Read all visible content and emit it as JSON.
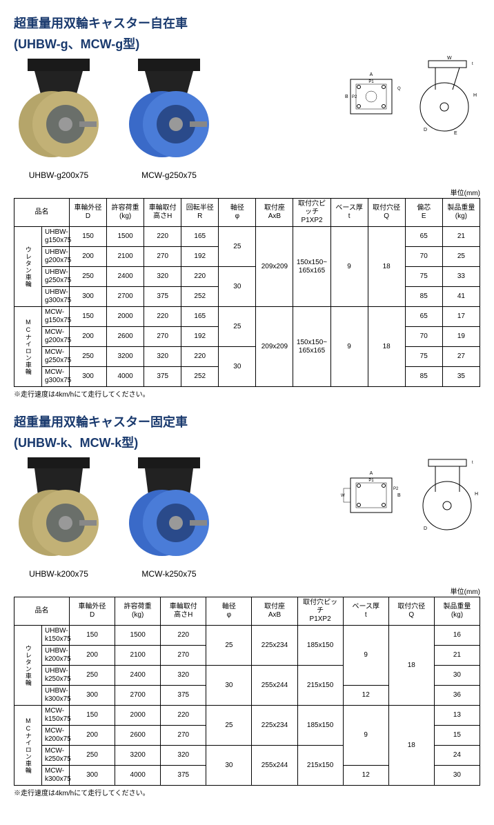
{
  "section1": {
    "title": "超重量用双輪キャスター自在車",
    "subtitle": "(UHBW-g、MCW-g型)",
    "product1": {
      "label": "UHBW-g200x75",
      "wheel_color": "#b5a56a",
      "hub_color": "#6a6f6a"
    },
    "product2": {
      "label": "MCW-g250x75",
      "wheel_color": "#4a7cd8",
      "hub_color": "#2a4a8a"
    },
    "unit": "単位(mm)",
    "note": "※走行速度は4km/hにて走行してください。",
    "headers": [
      "品名",
      "車輪外径\nD",
      "許容荷重\n(kg)",
      "車輪取付\n高さH",
      "回転半径\nR",
      "軸径\nφ",
      "取付座\nAxB",
      "取付穴ピッチ\nP1XP2",
      "ベース厚\nt",
      "取付穴径\nQ",
      "偏芯\nE",
      "製品重量\n(kg)"
    ],
    "group1": {
      "label": "ウレタン車輪",
      "rows": [
        {
          "name": "UHBW-g150x75",
          "d": "150",
          "kg": "1500",
          "h": "220",
          "r": "165",
          "phi_span": 2,
          "phi": "25",
          "axb_span": 4,
          "axb": "209x209",
          "pitch_span": 4,
          "pitch": "150x150~\n165x165",
          "t_span": 4,
          "t": "9",
          "q_span": 4,
          "q": "18",
          "e": "65",
          "wkg": "21"
        },
        {
          "name": "UHBW-g200x75",
          "d": "200",
          "kg": "2100",
          "h": "270",
          "r": "192",
          "e": "70",
          "wkg": "25"
        },
        {
          "name": "UHBW-g250x75",
          "d": "250",
          "kg": "2400",
          "h": "320",
          "r": "220",
          "phi_span": 2,
          "phi": "30",
          "e": "75",
          "wkg": "33"
        },
        {
          "name": "UHBW-g300x75",
          "d": "300",
          "kg": "2700",
          "h": "375",
          "r": "252",
          "e": "85",
          "wkg": "41"
        }
      ]
    },
    "group2": {
      "label": "MCナイロン車輪",
      "rows": [
        {
          "name": "MCW-g150x75",
          "d": "150",
          "kg": "2000",
          "h": "220",
          "r": "165",
          "phi_span": 2,
          "phi": "25",
          "axb_span": 4,
          "axb": "209x209",
          "pitch_span": 4,
          "pitch": "150x150~\n165x165",
          "t_span": 4,
          "t": "9",
          "q_span": 4,
          "q": "18",
          "e": "65",
          "wkg": "17"
        },
        {
          "name": "MCW-g200x75",
          "d": "200",
          "kg": "2600",
          "h": "270",
          "r": "192",
          "e": "70",
          "wkg": "19"
        },
        {
          "name": "MCW-g250x75",
          "d": "250",
          "kg": "3200",
          "h": "320",
          "r": "220",
          "phi_span": 2,
          "phi": "30",
          "e": "75",
          "wkg": "27"
        },
        {
          "name": "MCW-g300x75",
          "d": "300",
          "kg": "4000",
          "h": "375",
          "r": "252",
          "e": "85",
          "wkg": "35"
        }
      ]
    }
  },
  "section2": {
    "title": "超重量用双輪キャスター固定車",
    "subtitle": "(UHBW-k、MCW-k型)",
    "product1": {
      "label": "UHBW-k200x75",
      "wheel_color": "#b5a56a",
      "hub_color": "#6a6f6a"
    },
    "product2": {
      "label": "MCW-k250x75",
      "wheel_color": "#4a7cd8",
      "hub_color": "#2a4a8a"
    },
    "unit": "単位(mm)",
    "note": "※走行速度は4km/hにて走行してください。",
    "headers": [
      "品名",
      "車輪外径\nD",
      "許容荷重\n(kg)",
      "車輪取付\n高さH",
      "軸径\nφ",
      "取付座\nAxB",
      "取付穴ピッチ\nP1XP2",
      "ベース厚\nt",
      "取付穴径\nQ",
      "製品重量\n(kg)"
    ],
    "group1": {
      "label": "ウレタン車輪",
      "rows": [
        {
          "name": "UHBW-k150x75",
          "d": "150",
          "kg": "1500",
          "h": "220",
          "phi_span": 2,
          "phi": "25",
          "axb_span": 2,
          "axb": "225x234",
          "pitch_span": 2,
          "pitch": "185x150",
          "t_span": 3,
          "t": "9",
          "q_span": 4,
          "q": "18",
          "wkg": "16"
        },
        {
          "name": "UHBW-k200x75",
          "d": "200",
          "kg": "2100",
          "h": "270",
          "wkg": "21"
        },
        {
          "name": "UHBW-k250x75",
          "d": "250",
          "kg": "2400",
          "h": "320",
          "phi_span": 2,
          "phi": "30",
          "axb_span": 2,
          "axb": "255x244",
          "pitch_span": 2,
          "pitch": "215x150",
          "wkg": "30"
        },
        {
          "name": "UHBW-k300x75",
          "d": "300",
          "kg": "2700",
          "h": "375",
          "t_span": 1,
          "t": "12",
          "wkg": "36"
        }
      ]
    },
    "group2": {
      "label": "MCナイロン車輪",
      "rows": [
        {
          "name": "MCW-k150x75",
          "d": "150",
          "kg": "2000",
          "h": "220",
          "phi_span": 2,
          "phi": "25",
          "axb_span": 2,
          "axb": "225x234",
          "pitch_span": 2,
          "pitch": "185x150",
          "t_span": 3,
          "t": "9",
          "q_span": 4,
          "q": "18",
          "wkg": "13"
        },
        {
          "name": "MCW-k200x75",
          "d": "200",
          "kg": "2600",
          "h": "270",
          "wkg": "15"
        },
        {
          "name": "MCW-k250x75",
          "d": "250",
          "kg": "3200",
          "h": "320",
          "phi_span": 2,
          "phi": "30",
          "axb_span": 2,
          "axb": "255x244",
          "pitch_span": 2,
          "pitch": "215x150",
          "wkg": "24"
        },
        {
          "name": "MCW-k300x75",
          "d": "300",
          "kg": "4000",
          "h": "375",
          "t_span": 1,
          "t": "12",
          "wkg": "30"
        }
      ]
    }
  },
  "diagram_labels": {
    "A": "A",
    "P1": "P1",
    "B": "B",
    "P2": "P2",
    "W": "W",
    "H": "H",
    "E": "E",
    "D": "D",
    "t": "t",
    "Q": "Q"
  }
}
